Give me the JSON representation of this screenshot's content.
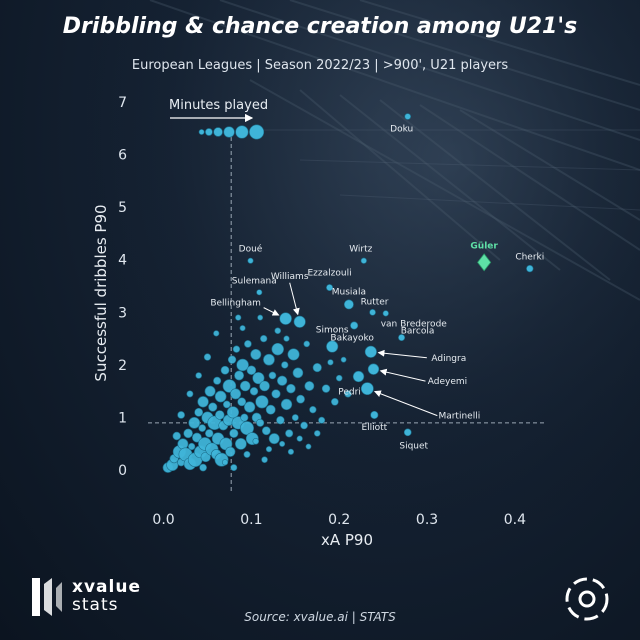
{
  "header": {
    "title": "Dribbling & chance creation among U21's",
    "subtitle": "European Leagues | Season 2022/23 | >900', U21 players"
  },
  "legend": {
    "label": "Minutes played",
    "arrow": "→"
  },
  "footer": {
    "brand_line1": "xvalue",
    "brand_line2": "stats",
    "source": "Source: xvalue.ai | STATS"
  },
  "colors": {
    "point": "#3fb4d8",
    "point_stroke": "#1d6f8c",
    "highlight": "#5ee0a6",
    "reference": "#9aa7b4"
  },
  "chart_data": {
    "type": "scatter",
    "xlabel": "xA P90",
    "ylabel": "Successful dribbles P90",
    "xlim": [
      -0.02,
      0.44
    ],
    "ylim": [
      -0.3,
      7.3
    ],
    "xticks": [
      "0.0",
      "0.1",
      "0.2",
      "0.3",
      "0.4"
    ],
    "xtick_values": [
      0,
      0.1,
      0.2,
      0.3,
      0.4
    ],
    "yticks": [
      "0",
      "1",
      "2",
      "3",
      "4",
      "5",
      "6",
      "7"
    ],
    "ytick_values": [
      0,
      1,
      2,
      3,
      4,
      5,
      6,
      7
    ],
    "reference_lines": {
      "x": 0.077,
      "y": 0.9
    },
    "size_legend_minutes": [
      900,
      1400,
      1900,
      2400,
      2900,
      3400
    ],
    "labeled_points": [
      {
        "name": "Doku",
        "x": 0.278,
        "y": 6.72,
        "minutes": 1100
      },
      {
        "name": "Güler",
        "x": 0.365,
        "y": 3.95,
        "minutes": 1000,
        "highlight": true
      },
      {
        "name": "Cherki",
        "x": 0.417,
        "y": 3.83,
        "minutes": 1300
      },
      {
        "name": "Doué",
        "x": 0.099,
        "y": 3.98,
        "minutes": 950
      },
      {
        "name": "Wirtz",
        "x": 0.228,
        "y": 3.98,
        "minutes": 1000
      },
      {
        "name": "Williams",
        "x": 0.155,
        "y": 2.82,
        "minutes": 2600
      },
      {
        "name": "Sulemana",
        "x": 0.109,
        "y": 3.38,
        "minutes": 950
      },
      {
        "name": "Ezzalzouli",
        "x": 0.189,
        "y": 3.47,
        "minutes": 1200
      },
      {
        "name": "Musiala",
        "x": 0.211,
        "y": 3.15,
        "minutes": 2000
      },
      {
        "name": "Rutter",
        "x": 0.238,
        "y": 3.0,
        "minutes": 1100
      },
      {
        "name": "van Brederode",
        "x": 0.253,
        "y": 2.98,
        "minutes": 1000
      },
      {
        "name": "Bellingham",
        "x": 0.139,
        "y": 2.88,
        "minutes": 2700
      },
      {
        "name": "Bakayoko",
        "x": 0.217,
        "y": 2.75,
        "minutes": 1500
      },
      {
        "name": "Barcola",
        "x": 0.271,
        "y": 2.52,
        "minutes": 1200
      },
      {
        "name": "Simons",
        "x": 0.192,
        "y": 2.35,
        "minutes": 2600
      },
      {
        "name": "Adingra",
        "x": 0.236,
        "y": 2.25,
        "minutes": 2600
      },
      {
        "name": "Adeyemi",
        "x": 0.239,
        "y": 1.92,
        "minutes": 2400
      },
      {
        "name": "Pedri",
        "x": 0.222,
        "y": 1.78,
        "minutes": 2400
      },
      {
        "name": "Martinelli",
        "x": 0.232,
        "y": 1.55,
        "minutes": 2800
      },
      {
        "name": "Elliott",
        "x": 0.24,
        "y": 1.05,
        "minutes": 1500
      },
      {
        "name": "Siquet",
        "x": 0.278,
        "y": 0.72,
        "minutes": 1400
      }
    ],
    "points": [
      [
        0.005,
        0.05,
        2200
      ],
      [
        0.01,
        0.1,
        2600
      ],
      [
        0.012,
        0.22,
        1800
      ],
      [
        0.018,
        0.35,
        2900
      ],
      [
        0.02,
        0.15,
        1500
      ],
      [
        0.022,
        0.5,
        2300
      ],
      [
        0.025,
        0.3,
        3100
      ],
      [
        0.028,
        0.7,
        1900
      ],
      [
        0.03,
        0.12,
        2700
      ],
      [
        0.032,
        0.45,
        1300
      ],
      [
        0.035,
        0.9,
        2500
      ],
      [
        0.036,
        0.2,
        3300
      ],
      [
        0.038,
        0.62,
        2000
      ],
      [
        0.04,
        1.1,
        1700
      ],
      [
        0.042,
        0.35,
        2800
      ],
      [
        0.044,
        0.8,
        1400
      ],
      [
        0.045,
        1.3,
        2400
      ],
      [
        0.047,
        0.5,
        3000
      ],
      [
        0.048,
        0.25,
        2100
      ],
      [
        0.05,
        1.0,
        2600
      ],
      [
        0.052,
        0.7,
        1600
      ],
      [
        0.053,
        1.5,
        2300
      ],
      [
        0.055,
        0.4,
        2900
      ],
      [
        0.056,
        1.2,
        1800
      ],
      [
        0.058,
        0.9,
        3200
      ],
      [
        0.06,
        0.3,
        2200
      ],
      [
        0.061,
        1.7,
        1500
      ],
      [
        0.062,
        0.6,
        2700
      ],
      [
        0.064,
        1.05,
        1900
      ],
      [
        0.065,
        1.4,
        2500
      ],
      [
        0.066,
        0.2,
        3100
      ],
      [
        0.068,
        0.85,
        2000
      ],
      [
        0.07,
        1.9,
        1700
      ],
      [
        0.071,
        0.5,
        2800
      ],
      [
        0.072,
        1.25,
        1400
      ],
      [
        0.074,
        0.95,
        2400
      ],
      [
        0.075,
        1.6,
        3000
      ],
      [
        0.076,
        0.35,
        2100
      ],
      [
        0.078,
        2.1,
        1600
      ],
      [
        0.079,
        1.1,
        2600
      ],
      [
        0.08,
        0.7,
        1800
      ],
      [
        0.082,
        1.45,
        2300
      ],
      [
        0.083,
        2.3,
        1300
      ],
      [
        0.085,
        0.9,
        2900
      ],
      [
        0.086,
        1.8,
        2000
      ],
      [
        0.088,
        0.5,
        2500
      ],
      [
        0.089,
        1.3,
        1700
      ],
      [
        0.09,
        2.0,
        2700
      ],
      [
        0.092,
        1.0,
        1500
      ],
      [
        0.093,
        1.6,
        2200
      ],
      [
        0.095,
        0.8,
        3100
      ],
      [
        0.096,
        2.4,
        1400
      ],
      [
        0.098,
        1.2,
        2400
      ],
      [
        0.1,
        1.9,
        1900
      ],
      [
        0.101,
        0.6,
        2800
      ],
      [
        0.103,
        1.5,
        1600
      ],
      [
        0.105,
        2.2,
        2300
      ],
      [
        0.106,
        1.0,
        2000
      ],
      [
        0.108,
        1.75,
        2600
      ],
      [
        0.11,
        0.9,
        1500
      ],
      [
        0.112,
        1.3,
        2900
      ],
      [
        0.114,
        2.5,
        1300
      ],
      [
        0.115,
        1.6,
        2200
      ],
      [
        0.117,
        0.75,
        1700
      ],
      [
        0.12,
        2.1,
        2500
      ],
      [
        0.122,
        1.15,
        2000
      ],
      [
        0.124,
        1.8,
        1400
      ],
      [
        0.126,
        0.6,
        2300
      ],
      [
        0.128,
        1.45,
        1800
      ],
      [
        0.13,
        2.3,
        2700
      ],
      [
        0.133,
        0.95,
        1600
      ],
      [
        0.135,
        1.7,
        2100
      ],
      [
        0.138,
        2.0,
        1300
      ],
      [
        0.14,
        1.25,
        2400
      ],
      [
        0.143,
        0.7,
        1500
      ],
      [
        0.145,
        1.55,
        1900
      ],
      [
        0.148,
        2.2,
        2600
      ],
      [
        0.15,
        1.0,
        1200
      ],
      [
        0.153,
        1.85,
        2200
      ],
      [
        0.156,
        1.35,
        1700
      ],
      [
        0.16,
        0.85,
        1400
      ],
      [
        0.163,
        2.4,
        1100
      ],
      [
        0.166,
        1.6,
        2000
      ],
      [
        0.17,
        1.15,
        1300
      ],
      [
        0.175,
        1.95,
        1800
      ],
      [
        0.18,
        0.95,
        1200
      ],
      [
        0.185,
        1.55,
        1600
      ],
      [
        0.19,
        2.05,
        1000
      ],
      [
        0.195,
        1.3,
        1400
      ],
      [
        0.2,
        1.75,
        1100
      ],
      [
        0.205,
        2.1,
        900
      ],
      [
        0.21,
        1.45,
        1300
      ],
      [
        0.095,
        0.3,
        1200
      ],
      [
        0.07,
        0.15,
        1000
      ],
      [
        0.105,
        0.55,
        1100
      ],
      [
        0.12,
        0.4,
        1000
      ],
      [
        0.135,
        0.5,
        950
      ],
      [
        0.155,
        0.6,
        1000
      ],
      [
        0.06,
        2.6,
        1000
      ],
      [
        0.09,
        2.7,
        950
      ],
      [
        0.13,
        2.65,
        1100
      ],
      [
        0.085,
        2.9,
        1000
      ],
      [
        0.04,
        1.8,
        1100
      ],
      [
        0.03,
        1.45,
        1200
      ],
      [
        0.015,
        0.65,
        1600
      ],
      [
        0.05,
        2.15,
        1300
      ],
      [
        0.02,
        1.05,
        1400
      ],
      [
        0.115,
        0.2,
        1100
      ],
      [
        0.145,
        0.35,
        1000
      ],
      [
        0.175,
        0.7,
        1100
      ],
      [
        0.11,
        2.9,
        900
      ],
      [
        0.14,
        2.5,
        1000
      ],
      [
        0.165,
        0.45,
        900
      ],
      [
        0.08,
        0.05,
        1200
      ],
      [
        0.045,
        0.05,
        1400
      ]
    ]
  }
}
